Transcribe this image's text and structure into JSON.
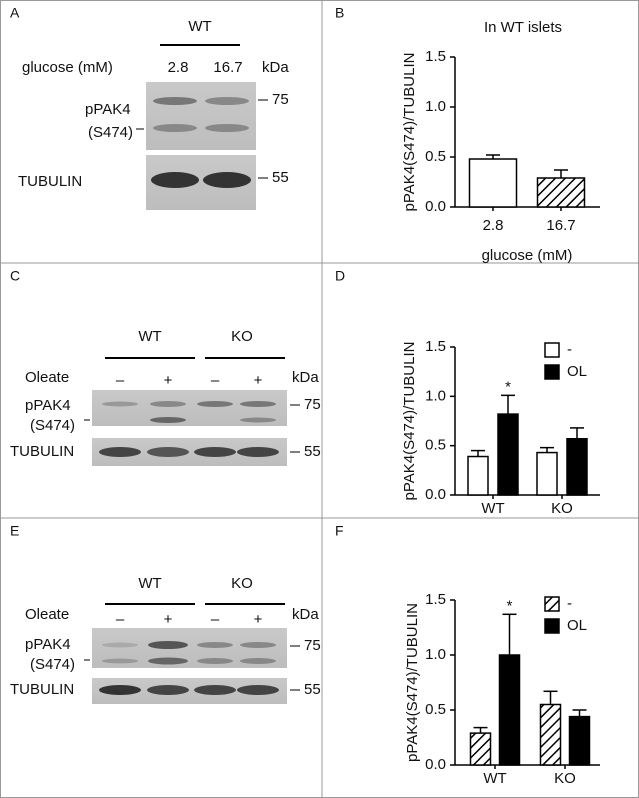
{
  "panel_labels": [
    "A",
    "B",
    "C",
    "D",
    "E",
    "F"
  ],
  "blots": [
    {
      "groups": [
        "WT"
      ],
      "condition_label": "glucose (mM)",
      "lanes": [
        "2.8",
        "16.7"
      ],
      "unit": "kDa",
      "target": [
        "pPAK4",
        "(S474)"
      ],
      "marker_top": "75",
      "loading": "TUBULIN",
      "marker_bottom": "55"
    },
    {
      "groups": [
        "WT",
        "KO"
      ],
      "condition_label": "Oleate",
      "lanes": [
        "–",
        "+",
        "–",
        "+"
      ],
      "unit": "kDa",
      "target": [
        "pPAK4",
        "(S474)"
      ],
      "marker_top": "75",
      "loading": "TUBULIN",
      "marker_bottom": "55"
    },
    {
      "groups": [
        "WT",
        "KO"
      ],
      "condition_label": "Oleate",
      "lanes": [
        "–",
        "+",
        "–",
        "+"
      ],
      "unit": "kDa",
      "target": [
        "pPAK4",
        "(S474)"
      ],
      "marker_top": "75",
      "loading": "TUBULIN",
      "marker_bottom": "55"
    }
  ],
  "chart_data": [
    {
      "type": "bar",
      "title": "In WT islets",
      "y_label": "pPAK4(S474)/TUBULIN",
      "x_label": "glucose (mM)",
      "categories": [
        "2.8",
        "16.7"
      ],
      "values": [
        0.48,
        0.29
      ],
      "errors": [
        0.04,
        0.08
      ],
      "fills": [
        "#ffffff",
        "hatch"
      ],
      "ylim": [
        0,
        1.5
      ],
      "yticks": [
        {
          "value": 0,
          "label": "0.0"
        },
        0.5,
        {
          "value": 1,
          "label": "1.0"
        },
        1.5
      ]
    },
    {
      "type": "grouped_bar",
      "y_label": "pPAK4(S474)/TUBULIN",
      "categories": [
        "WT",
        "KO"
      ],
      "series": [
        {
          "name": "-",
          "color": "#ffffff",
          "values": [
            0.39,
            0.43
          ],
          "errors": [
            0.06,
            0.05
          ]
        },
        {
          "name": "OL",
          "color": "#000000",
          "values": [
            0.82,
            0.57
          ],
          "errors": [
            0.19,
            0.11
          ]
        }
      ],
      "annotations": [
        {
          "text": "*",
          "category": 0,
          "series": 1
        }
      ],
      "ylim": [
        0,
        1.5
      ],
      "yticks": [
        {
          "value": 0,
          "label": "0.0"
        },
        0.5,
        {
          "value": 1,
          "label": "1.0"
        },
        1.5
      ]
    },
    {
      "type": "grouped_bar",
      "y_label": "pPAK4(S474)/TUBULIN",
      "categories": [
        "WT",
        "KO"
      ],
      "series": [
        {
          "name": "-",
          "color": "hatch",
          "values": [
            0.29,
            0.55
          ],
          "errors": [
            0.05,
            0.12
          ]
        },
        {
          "name": "OL",
          "color": "#000000",
          "values": [
            1.0,
            0.44
          ],
          "errors": [
            0.37,
            0.06
          ]
        }
      ],
      "annotations": [
        {
          "text": "*",
          "category": 0,
          "series": 1
        }
      ],
      "ylim": [
        0,
        1.5
      ],
      "yticks": [
        {
          "value": 0,
          "label": "0.0"
        },
        0.5,
        {
          "value": 1,
          "label": "1.0"
        },
        1.5
      ]
    }
  ]
}
